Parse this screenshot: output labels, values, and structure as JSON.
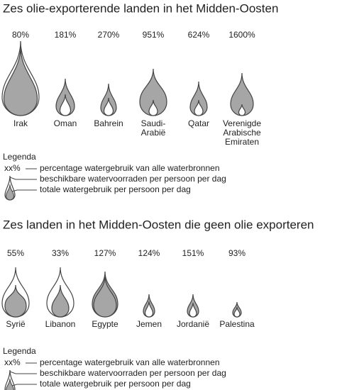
{
  "panels": [
    {
      "title": "Zes olie-exporterende landen in het Midden-Oosten",
      "countries": [
        {
          "percentage": "80%",
          "name": [
            "Irak"
          ]
        },
        {
          "percentage": "181%",
          "name": [
            "Oman"
          ]
        },
        {
          "percentage": "270%",
          "name": [
            "Bahrein"
          ]
        },
        {
          "percentage": "951%",
          "name": [
            "Saudi-",
            "Arabië"
          ]
        },
        {
          "percentage": "624%",
          "name": [
            "Qatar"
          ]
        },
        {
          "percentage": "1600%",
          "name": [
            "Verenigde",
            "Arabische",
            "Emiraten"
          ]
        }
      ],
      "legend": {
        "title": "Legenda",
        "symbol": "xx%",
        "items": [
          "percentage watergebruik van alle waterbronnen",
          "beschikbare watervoorraden per persoon per dag",
          "totale watergebruik per persoon per dag"
        ]
      }
    },
    {
      "title": "Zes landen in het Midden-Oosten die geen olie exporteren",
      "countries": [
        {
          "percentage": "55%",
          "name": [
            "Syrië"
          ]
        },
        {
          "percentage": "33%",
          "name": [
            "Libanon"
          ]
        },
        {
          "percentage": "127%",
          "name": [
            "Egypte"
          ]
        },
        {
          "percentage": "124%",
          "name": [
            "Jemen"
          ]
        },
        {
          "percentage": "151%",
          "name": [
            "Jordanië"
          ]
        },
        {
          "percentage": "93%",
          "name": [
            "Palestina"
          ]
        }
      ],
      "legend": {
        "title": "Legenda",
        "symbol": "xx%",
        "items": [
          "percentage watergebruik van alle waterbronnen",
          "beschikbare watervoorraden per persoon per dag",
          "totale watergebruik per persoon per dag"
        ]
      }
    }
  ]
}
